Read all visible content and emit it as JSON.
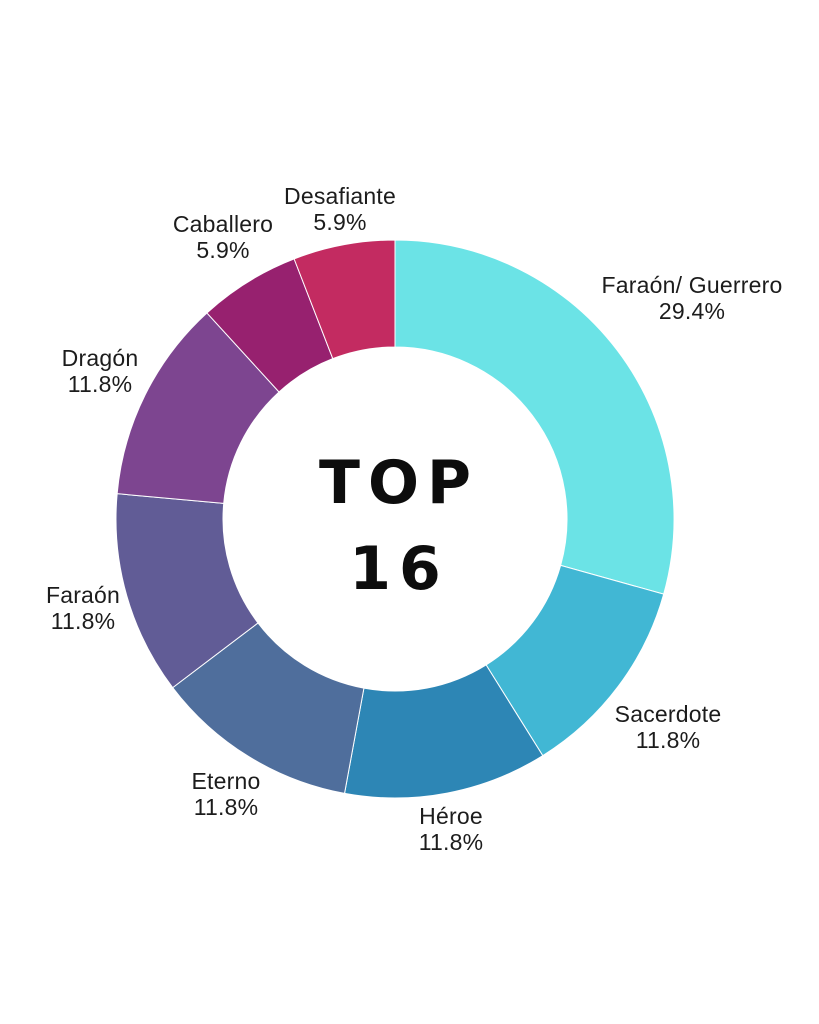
{
  "chart_data": {
    "type": "pie",
    "variant": "donut",
    "title": "TOP 16",
    "center_label_line1": "TOP",
    "center_label_line2": "16",
    "start_angle_deg": 0,
    "direction": "clockwise",
    "legend_position": "around-labels",
    "background_color": "#FFFFFF",
    "label_text_color": "#1C1C1C",
    "center_text_color": "#0D0D0D",
    "segments": [
      {
        "label": "Faraón/ Guerrero",
        "value": 29.4,
        "display": "29.4%",
        "color": "#6BE3E6"
      },
      {
        "label": "Sacerdote",
        "value": 11.8,
        "display": "11.8%",
        "color": "#41B7D4"
      },
      {
        "label": "Héroe",
        "value": 11.8,
        "display": "11.8%",
        "color": "#2D86B5"
      },
      {
        "label": "Eterno",
        "value": 11.8,
        "display": "11.8%",
        "color": "#4F6E9C"
      },
      {
        "label": "Faraón",
        "value": 11.8,
        "display": "11.8%",
        "color": "#615C96"
      },
      {
        "label": "Dragón",
        "value": 11.8,
        "display": "11.8%",
        "color": "#7D4590"
      },
      {
        "label": "Caballero",
        "value": 5.9,
        "display": "5.9%",
        "color": "#97216F"
      },
      {
        "label": "Desafiante",
        "value": 5.9,
        "display": "5.9%",
        "color": "#C32B61"
      }
    ]
  }
}
